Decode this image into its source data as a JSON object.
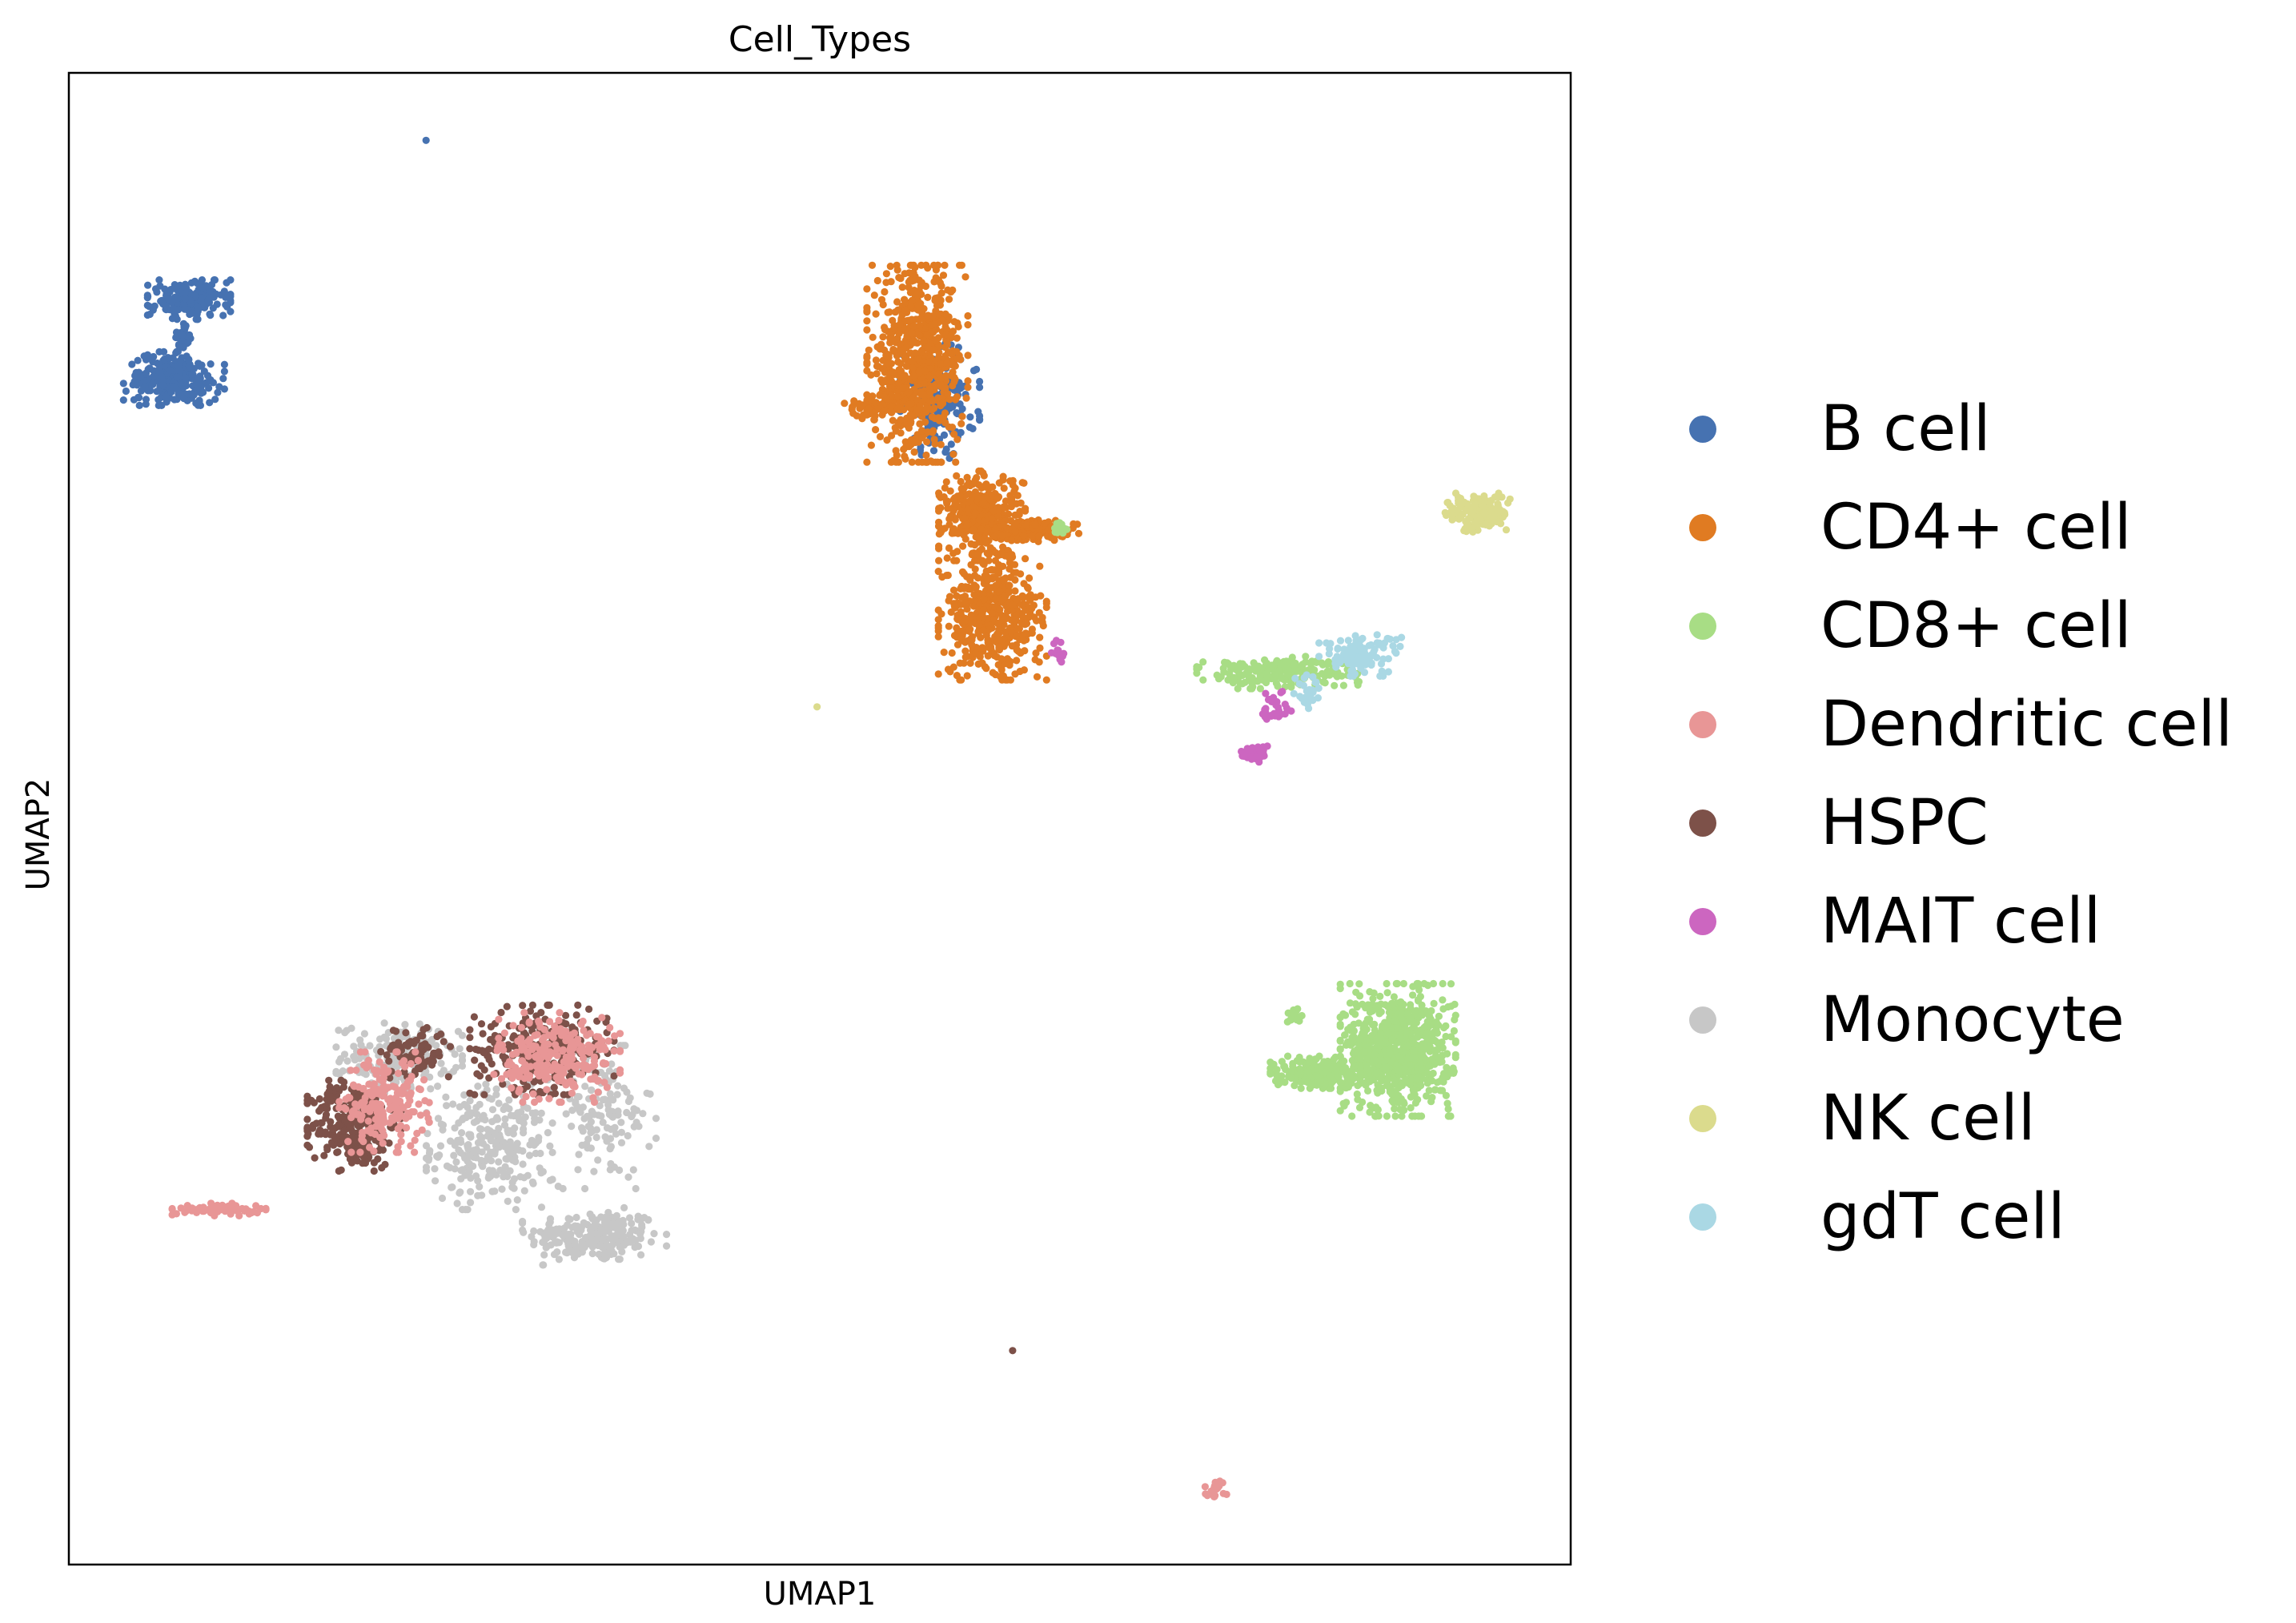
{
  "chart_data": {
    "type": "scatter",
    "title": "Cell_Types",
    "xlabel": "UMAP1",
    "ylabel": "UMAP2",
    "xlim": [
      0,
      100
    ],
    "ylim": [
      0,
      100
    ],
    "grid": false,
    "ticks_shown": false,
    "legend_placement": "right",
    "point_size": "small",
    "series": [
      {
        "name": "B cell",
        "color": "#4672b1",
        "clusters": [
          {
            "cx": 7.0,
            "cy": 79.5,
            "rx": 2.8,
            "ry": 1.5,
            "n": 260
          },
          {
            "cx": 8.0,
            "cy": 84.8,
            "rx": 2.3,
            "ry": 1.1,
            "n": 200
          },
          {
            "cx": 7.5,
            "cy": 82.1,
            "rx": 0.5,
            "ry": 1.0,
            "n": 40
          },
          {
            "cx": 58.0,
            "cy": 78.0,
            "rx": 2.2,
            "ry": 3.2,
            "n": 180
          },
          {
            "cx": 23.8,
            "cy": 95.5,
            "rx": 0.05,
            "ry": 0.05,
            "n": 1
          }
        ]
      },
      {
        "name": "CD4+ cell",
        "color": "#e07b22",
        "clusters": [
          {
            "cx": 56.5,
            "cy": 80.5,
            "rx": 2.8,
            "ry": 5.5,
            "n": 650
          },
          {
            "cx": 60.8,
            "cy": 70.3,
            "rx": 2.4,
            "ry": 2.5,
            "n": 380
          },
          {
            "cx": 64.5,
            "cy": 69.3,
            "rx": 2.4,
            "ry": 0.6,
            "n": 120
          },
          {
            "cx": 61.5,
            "cy": 63.5,
            "rx": 3.0,
            "ry": 3.5,
            "n": 450
          },
          {
            "cx": 53.8,
            "cy": 77.7,
            "rx": 1.8,
            "ry": 0.8,
            "n": 60
          }
        ]
      },
      {
        "name": "CD8+ cell",
        "color": "#a8dd85",
        "clusters": [
          {
            "cx": 88.5,
            "cy": 34.5,
            "rx": 3.2,
            "ry": 3.7,
            "n": 750
          },
          {
            "cx": 83.0,
            "cy": 33.0,
            "rx": 2.5,
            "ry": 0.9,
            "n": 220
          },
          {
            "cx": 81.5,
            "cy": 36.8,
            "rx": 0.5,
            "ry": 0.6,
            "n": 15
          },
          {
            "cx": 80.5,
            "cy": 59.8,
            "rx": 4.5,
            "ry": 0.9,
            "n": 220
          },
          {
            "cx": 66.0,
            "cy": 69.5,
            "rx": 0.6,
            "ry": 0.4,
            "n": 15
          }
        ]
      },
      {
        "name": "Dendritic cell",
        "color": "#e89696",
        "clusters": [
          {
            "cx": 10.0,
            "cy": 23.8,
            "rx": 2.6,
            "ry": 0.35,
            "n": 70
          },
          {
            "cx": 21.0,
            "cy": 31.0,
            "rx": 2.5,
            "ry": 2.8,
            "n": 200
          },
          {
            "cx": 32.5,
            "cy": 34.0,
            "rx": 3.5,
            "ry": 2.5,
            "n": 260
          },
          {
            "cx": 76.5,
            "cy": 5.1,
            "rx": 0.8,
            "ry": 0.6,
            "n": 20
          }
        ]
      },
      {
        "name": "HSPC",
        "color": "#7d5149",
        "clusters": [
          {
            "cx": 19.0,
            "cy": 29.5,
            "rx": 2.6,
            "ry": 2.6,
            "n": 300
          },
          {
            "cx": 31.5,
            "cy": 34.5,
            "rx": 4.0,
            "ry": 2.5,
            "n": 280
          },
          {
            "cx": 23.0,
            "cy": 34.5,
            "rx": 2.0,
            "ry": 1.5,
            "n": 80
          },
          {
            "cx": 62.8,
            "cy": 14.3,
            "rx": 0.05,
            "ry": 0.05,
            "n": 1
          }
        ]
      },
      {
        "name": "MAIT cell",
        "color": "#cc66c0",
        "clusters": [
          {
            "cx": 79.0,
            "cy": 54.4,
            "rx": 0.8,
            "ry": 0.5,
            "n": 45
          },
          {
            "cx": 80.5,
            "cy": 57.5,
            "rx": 1.0,
            "ry": 1.2,
            "n": 30
          },
          {
            "cx": 66.0,
            "cy": 61.0,
            "rx": 0.5,
            "ry": 0.9,
            "n": 15
          }
        ]
      },
      {
        "name": "Monocyte",
        "color": "#c7c7c7",
        "clusters": [
          {
            "cx": 35.0,
            "cy": 22.0,
            "rx": 4.0,
            "ry": 1.6,
            "n": 230
          },
          {
            "cx": 28.0,
            "cy": 28.0,
            "rx": 3.5,
            "ry": 3.5,
            "n": 270
          },
          {
            "cx": 22.0,
            "cy": 34.0,
            "rx": 3.5,
            "ry": 2.0,
            "n": 180
          },
          {
            "cx": 35.5,
            "cy": 30.0,
            "rx": 3.0,
            "ry": 4.0,
            "n": 130
          }
        ]
      },
      {
        "name": "NK cell",
        "color": "#dbdb8d",
        "clusters": [
          {
            "cx": 93.8,
            "cy": 70.5,
            "rx": 1.8,
            "ry": 1.1,
            "n": 160
          },
          {
            "cx": 49.8,
            "cy": 57.5,
            "rx": 0.05,
            "ry": 0.05,
            "n": 1
          }
        ]
      },
      {
        "name": "gdT cell",
        "color": "#aad8e4",
        "clusters": [
          {
            "cx": 86.0,
            "cy": 61.0,
            "rx": 2.3,
            "ry": 1.2,
            "n": 120
          },
          {
            "cx": 82.5,
            "cy": 58.3,
            "rx": 0.9,
            "ry": 1.2,
            "n": 30
          }
        ]
      }
    ]
  }
}
